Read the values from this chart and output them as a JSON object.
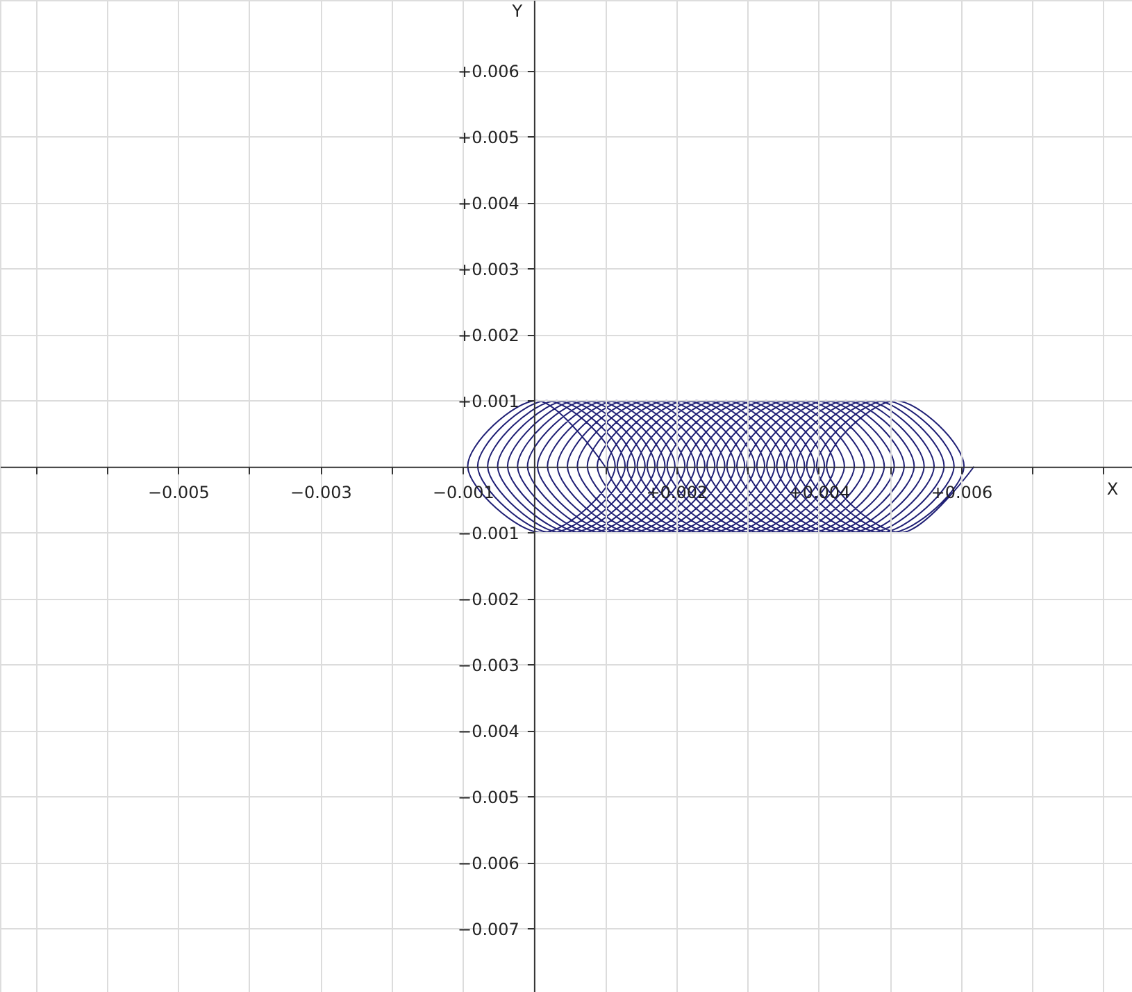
{
  "chart_data": {
    "type": "line",
    "xlabel": "X",
    "ylabel": "Y",
    "x": [
      0.001,
      4e-05,
      -0.00093,
      0.00011,
      0.00114,
      0.00018,
      -0.00079,
      0.00025,
      0.00128,
      0.00032,
      -0.00065,
      0.00039,
      0.00142,
      0.00046,
      -0.00051,
      0.00053,
      0.00156,
      0.0006,
      -0.00037,
      0.00067,
      0.0017,
      0.00074,
      -0.00023,
      0.00081,
      0.00184,
      0.00088,
      -9e-05,
      0.00095,
      0.00198,
      0.00102,
      5e-05,
      0.00109,
      0.00212,
      0.00116,
      0.00019,
      0.00123,
      0.00226,
      0.0013,
      0.00033,
      0.00137,
      0.0024,
      0.00144,
      0.00047,
      0.00151,
      0.00254,
      0.00158,
      0.00061,
      0.00165,
      0.00268,
      0.00172,
      0.00075,
      0.00179,
      0.00282,
      0.00186,
      0.00089,
      0.00193,
      0.00296,
      0.002,
      0.00103,
      0.00207,
      0.0031,
      0.00214,
      0.00117,
      0.00221,
      0.00324,
      0.00228,
      0.00131,
      0.00235,
      0.00338,
      0.00242,
      0.00145,
      0.00249,
      0.00352,
      0.00256,
      0.00159,
      0.00263,
      0.00366,
      0.0027,
      0.00173,
      0.00277,
      0.0038,
      0.00284,
      0.00187,
      0.00291,
      0.00394,
      0.00298,
      0.00201,
      0.00305,
      0.00408,
      0.00312,
      0.00215,
      0.00319,
      0.00422,
      0.00326,
      0.00229,
      0.00333,
      0.00436,
      0.0034,
      0.00243,
      0.00347,
      0.0045,
      0.00354,
      0.00257,
      0.00361,
      0.00464,
      0.00368,
      0.00271,
      0.00375,
      0.00478,
      0.00382,
      0.00285,
      0.00389,
      0.00492,
      0.00396,
      0.00299,
      0.00403,
      0.00506,
      0.0041,
      0.00313,
      0.00417,
      0.0052,
      0.00424,
      0.00327,
      0.00431,
      0.00534,
      0.00438,
      0.00341,
      0.00445,
      0.00548,
      0.00452,
      0.00355,
      0.00459,
      0.00562,
      0.00466,
      0.00369,
      0.00473,
      0.00576,
      0.0048,
      0.00383,
      0.00487,
      0.0059,
      0.00494,
      0.00397,
      0.00501,
      0.00604,
      0.00508,
      0.00411,
      0.00515,
      0.00618
    ],
    "series": [
      {
        "color": "#1f1f75",
        "values": [
          0,
          0.001,
          0,
          -0.001,
          0,
          0.001,
          0,
          -0.001,
          0,
          0.001,
          0,
          -0.001,
          0,
          0.001,
          0,
          -0.001,
          0,
          0.001,
          0,
          -0.001,
          0,
          0.001,
          0,
          -0.001,
          0,
          0.001,
          0,
          -0.001,
          0,
          0.001,
          0,
          -0.001,
          0,
          0.001,
          0,
          -0.001,
          0,
          0.001,
          0,
          -0.001,
          0,
          0.001,
          0,
          -0.001,
          0,
          0.001,
          0,
          -0.001,
          0,
          0.001,
          0,
          -0.001,
          0,
          0.001,
          0,
          -0.001,
          0,
          0.001,
          0,
          -0.001,
          0,
          0.001,
          0,
          -0.001,
          0,
          0.001,
          0,
          -0.001,
          0,
          0.001,
          0,
          -0.001,
          0,
          0.001,
          0,
          -0.001,
          0,
          0.001,
          0,
          -0.001,
          0,
          0.001,
          0,
          -0.001,
          0,
          0.001,
          0,
          -0.001,
          0,
          0.001,
          0,
          -0.001,
          0,
          0.001,
          0,
          -0.001,
          0,
          0.001,
          0,
          -0.001,
          0,
          0.001,
          0,
          -0.001,
          0,
          0.001,
          0,
          -0.001,
          0,
          0.001,
          0,
          -0.001,
          0,
          0.001,
          0,
          -0.001,
          0,
          0.001,
          0,
          -0.001,
          0,
          0.001,
          0,
          -0.001,
          0,
          0.001,
          0,
          -0.001,
          0,
          0.001,
          0,
          -0.001,
          0,
          0.001,
          0,
          -0.001,
          0,
          0.001,
          0,
          -0.001,
          0,
          0.001,
          0,
          -0.001,
          0,
          0.001,
          0,
          -0.001,
          0
        ]
      }
    ],
    "xlim": [
      -0.0075,
      0.0084
    ],
    "ylim": [
      -0.00796,
      0.00707
    ],
    "xticks": [
      {
        "value": -0.007,
        "label": null
      },
      {
        "value": -0.006,
        "label": null
      },
      {
        "value": -0.005,
        "label": "−0.005"
      },
      {
        "value": -0.004,
        "label": null
      },
      {
        "value": -0.003,
        "label": "−0.003"
      },
      {
        "value": -0.002,
        "label": null
      },
      {
        "value": -0.001,
        "label": "−0.001"
      },
      {
        "value": 0.001,
        "label": null
      },
      {
        "value": 0.002,
        "label": "+0.002"
      },
      {
        "value": 0.003,
        "label": null
      },
      {
        "value": 0.004,
        "label": "+0.004"
      },
      {
        "value": 0.005,
        "label": null
      },
      {
        "value": 0.006,
        "label": "+0.006"
      },
      {
        "value": 0.007,
        "label": null
      },
      {
        "value": 0.008,
        "label": null
      }
    ],
    "yticks": [
      {
        "value": -0.007,
        "label": "−0.007"
      },
      {
        "value": -0.006,
        "label": "−0.006"
      },
      {
        "value": -0.005,
        "label": "−0.005"
      },
      {
        "value": -0.004,
        "label": "−0.004"
      },
      {
        "value": -0.003,
        "label": "−0.003"
      },
      {
        "value": -0.002,
        "label": "−0.002"
      },
      {
        "value": -0.001,
        "label": "−0.001"
      },
      {
        "value": 0.001,
        "label": "+0.001"
      },
      {
        "value": 0.002,
        "label": "+0.002"
      },
      {
        "value": 0.003,
        "label": "+0.003"
      },
      {
        "value": 0.004,
        "label": "+0.004"
      },
      {
        "value": 0.005,
        "label": "+0.005"
      },
      {
        "value": 0.006,
        "label": "+0.006"
      }
    ],
    "grid": true,
    "marker": "none",
    "line_style": "solid"
  }
}
